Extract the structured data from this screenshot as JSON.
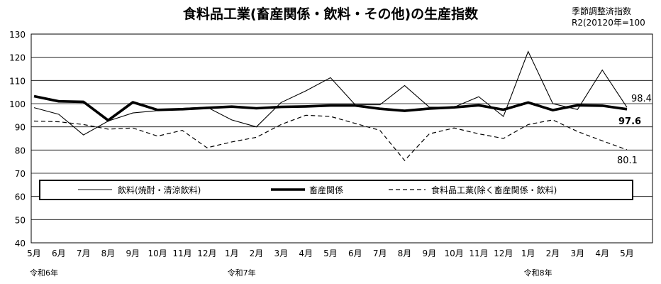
{
  "chart_data": {
    "type": "line",
    "title": "食料品工業(畜産関係・飲料・その他)の生産指数",
    "note_lines": [
      "季節調整済指数",
      "R2(20120年=100"
    ],
    "ylim": [
      40,
      130
    ],
    "yticks": [
      40,
      50,
      60,
      70,
      80,
      90,
      100,
      110,
      120,
      130
    ],
    "categories": [
      "5月",
      "6月",
      "7月",
      "8月",
      "9月",
      "10月",
      "11月",
      "12月",
      "1月",
      "2月",
      "3月",
      "4月",
      "5月",
      "6月",
      "7月",
      "8月",
      "9月",
      "10月",
      "11月",
      "12月",
      "1月",
      "2月",
      "3月",
      "4月",
      "5月"
    ],
    "era_labels": [
      {
        "index": 0,
        "text": "令和6年"
      },
      {
        "index": 8,
        "text": "令和7年"
      },
      {
        "index": 20,
        "text": "令和8年"
      }
    ],
    "grid": true,
    "legend_position": "inside-middle",
    "series": [
      {
        "name": "飲料(焼酎・清涼飲料)",
        "style": "thin",
        "values": [
          98.3,
          95.4,
          86.5,
          92.5,
          96.0,
          97.0,
          98.0,
          98.5,
          93.0,
          90.0,
          100.5,
          105.5,
          111.2,
          99.5,
          99.5,
          107.8,
          98.5,
          98.5,
          103.0,
          94.5,
          122.5,
          100.0,
          97.5,
          114.5,
          98.4
        ],
        "end_label": "98.4"
      },
      {
        "name": "畜産関係",
        "style": "thick",
        "values": [
          103.2,
          101.0,
          100.8,
          92.8,
          100.6,
          97.3,
          97.6,
          98.2,
          98.7,
          98.0,
          98.6,
          98.8,
          99.2,
          99.2,
          97.8,
          96.9,
          97.9,
          98.4,
          99.3,
          97.4,
          100.5,
          97.2,
          99.3,
          99.1,
          97.6
        ],
        "end_label": "97.6"
      },
      {
        "name": "食料品工業(除く畜産関係・飲料)",
        "style": "dashed",
        "values": [
          92.5,
          92.2,
          91.0,
          89.0,
          89.5,
          86.0,
          88.5,
          81.0,
          83.5,
          85.5,
          91.0,
          95.0,
          94.5,
          91.5,
          88.5,
          75.5,
          87.0,
          89.5,
          87.0,
          85.0,
          91.0,
          93.0,
          88.0,
          84.0,
          80.1
        ],
        "end_label": "80.1"
      }
    ]
  }
}
